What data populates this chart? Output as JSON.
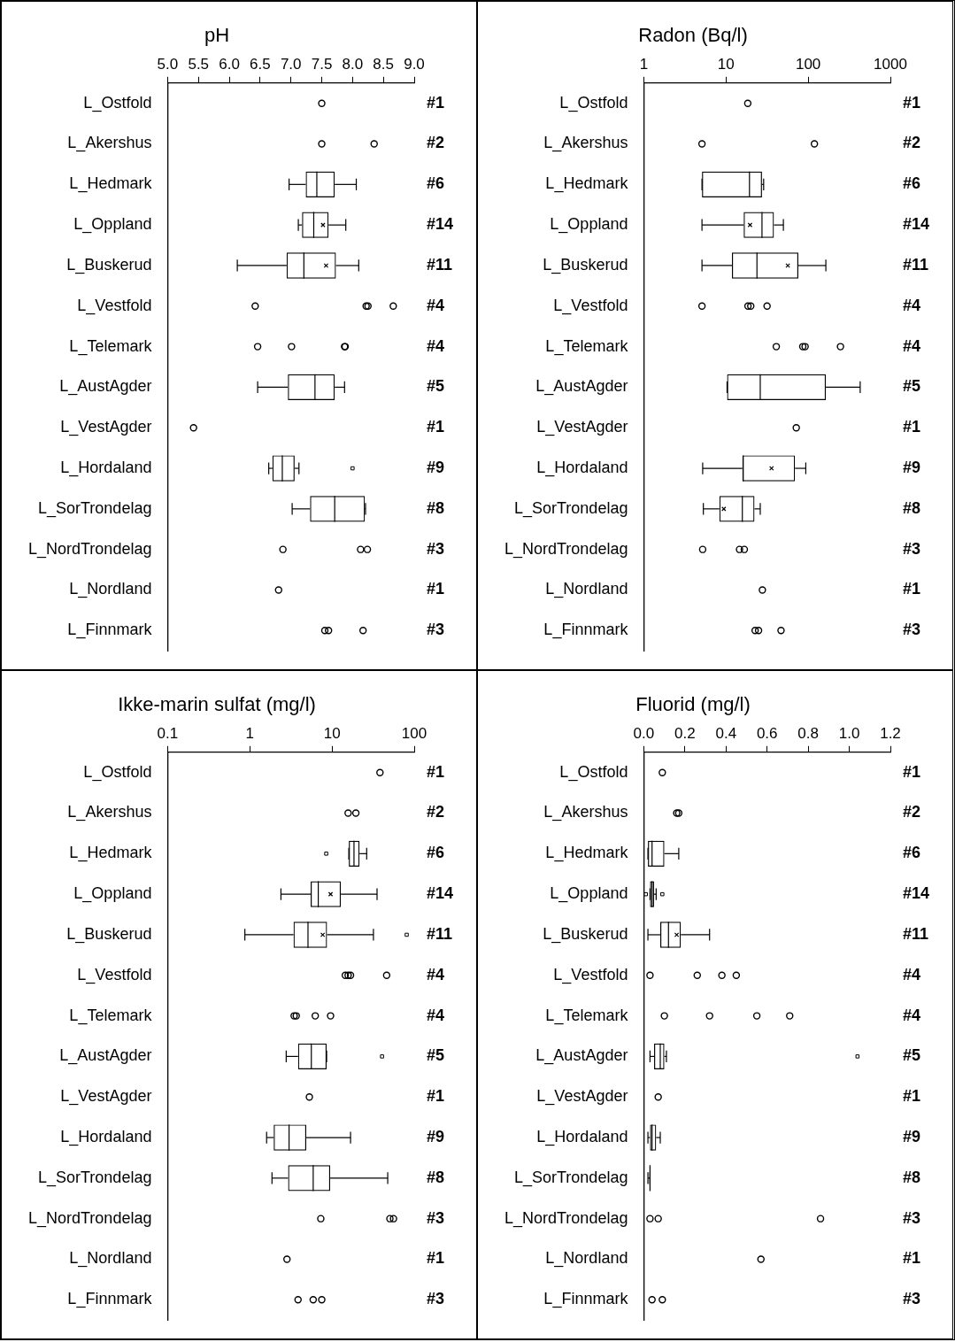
{
  "chart_data": [
    {
      "type": "box",
      "title": "pH",
      "orientation": "horizontal",
      "marker": "circle",
      "categories": [
        "L_Ostfold",
        "L_Akershus",
        "L_Hedmark",
        "L_Oppland",
        "L_Buskerud",
        "L_Vestfold",
        "L_Telemark",
        "L_AustAgder",
        "L_VestAgder",
        "L_Hordaland",
        "L_SorTrondelag",
        "L_NordTrondelag",
        "L_Nordland",
        "L_Finnmark"
      ],
      "xlim": [
        5,
        9
      ],
      "xticks": [
        {
          "value": 5,
          "label": "5.0"
        },
        {
          "value": 5.5,
          "label": "5.5"
        },
        {
          "value": 6,
          "label": "6.0"
        },
        {
          "value": 6.5,
          "label": "6.5"
        },
        {
          "value": 7,
          "label": "7.0"
        },
        {
          "value": 7.5,
          "label": "7.5"
        },
        {
          "value": 8,
          "label": "8.0"
        },
        {
          "value": 8.5,
          "label": "8.5"
        },
        {
          "value": 9,
          "label": "9.0"
        }
      ],
      "boxes": [
        null,
        null,
        {
          "low": 6.97,
          "q1": 7.24,
          "median": 7.42,
          "q3": 7.71,
          "high": 8.06
        },
        {
          "low": 7.12,
          "q1": 7.18,
          "median": 7.37,
          "q3": 7.61,
          "high": 7.89,
          "mean": 7.52
        },
        {
          "low": 6.13,
          "q1": 6.93,
          "median": 7.21,
          "q3": 7.73,
          "high": 8.1,
          "mean": 7.57
        },
        null,
        null,
        {
          "low": 6.46,
          "q1": 6.95,
          "median": 7.39,
          "q3": 7.71,
          "high": 7.87
        },
        null,
        {
          "low": 6.64,
          "q1": 6.7,
          "median": 6.86,
          "q3": 7.06,
          "high": 7.13,
          "outliers": [
            8.0
          ]
        },
        {
          "low": 7.02,
          "q1": 7.31,
          "median": 7.71,
          "q3": 8.2,
          "high": 8.21
        },
        null,
        null,
        null
      ],
      "series": [
        {
          "type": "scatter",
          "x": [
            "L_Ostfold",
            "L_Akershus",
            "L_Akershus",
            "L_Vestfold",
            "L_Vestfold",
            "L_Vestfold",
            "L_Vestfold",
            "L_Telemark",
            "L_Telemark",
            "L_Telemark",
            "L_Telemark",
            "L_VestAgder",
            "L_NordTrondelag",
            "L_NordTrondelag",
            "L_NordTrondelag",
            "L_Nordland",
            "L_Finnmark",
            "L_Finnmark",
            "L_Finnmark"
          ],
          "values": [
            7.5,
            7.5,
            8.35,
            6.42,
            8.22,
            8.25,
            8.66,
            6.46,
            7.01,
            7.87,
            7.88,
            5.42,
            6.87,
            8.13,
            8.24,
            6.8,
            7.55,
            7.61,
            8.17
          ]
        }
      ],
      "annotations": [
        "#1",
        "#2",
        "#6",
        "#14",
        "#11",
        "#4",
        "#4",
        "#5",
        "#1",
        "#9",
        "#8",
        "#3",
        "#1",
        "#3"
      ]
    },
    {
      "type": "box",
      "title": "Radon (Bq/l)",
      "orientation": "horizontal",
      "marker": "circle",
      "log": "x",
      "categories": [
        "L_Ostfold",
        "L_Akershus",
        "L_Hedmark",
        "L_Oppland",
        "L_Buskerud",
        "L_Vestfold",
        "L_Telemark",
        "L_AustAgder",
        "L_VestAgder",
        "L_Hordaland",
        "L_SorTrondelag",
        "L_NordTrondelag",
        "L_Nordland",
        "L_Finnmark"
      ],
      "xlim": [
        1,
        1000
      ],
      "xticks": [
        1,
        10,
        100,
        1000
      ],
      "boxes": [
        null,
        null,
        {
          "low": 5.1,
          "q1": 5.1,
          "median": 19.3,
          "q3": 27.4,
          "high": 28.7
        },
        {
          "low": 5.1,
          "q1": 16.4,
          "median": 27.4,
          "q3": 38.3,
          "high": 49.9,
          "mean": 19.6
        },
        {
          "low": 5.1,
          "q1": 11.8,
          "median": 23.8,
          "q3": 75.9,
          "high": 164,
          "mean": 56.5
        },
        null,
        null,
        {
          "low": 10.3,
          "q1": 10.3,
          "median": 26.1,
          "q3": 164,
          "high": 429
        },
        null,
        {
          "low": 5.2,
          "q1": 15.8,
          "median": 16.2,
          "q3": 69,
          "high": 93.5,
          "mean": 35.8
        },
        {
          "low": 5.3,
          "q1": 8.3,
          "median": 15.8,
          "q3": 22.2,
          "high": 26.1,
          "mean": 9.4
        },
        null,
        null,
        null
      ],
      "series": [
        {
          "type": "scatter",
          "x": [
            "L_Ostfold",
            "L_Akershus",
            "L_Akershus",
            "L_Vestfold",
            "L_Vestfold",
            "L_Vestfold",
            "L_Vestfold",
            "L_Telemark",
            "L_Telemark",
            "L_Telemark",
            "L_Telemark",
            "L_VestAgder",
            "L_NordTrondelag",
            "L_NordTrondelag",
            "L_NordTrondelag",
            "L_Nordland",
            "L_Finnmark",
            "L_Finnmark",
            "L_Finnmark"
          ],
          "values": [
            18.4,
            5.1,
            119,
            5.1,
            18.5,
            20,
            31.6,
            40.9,
            85.9,
            91.7,
            247,
            71.6,
            5.2,
            14.6,
            16.7,
            27.7,
            22.6,
            24.9,
            46.7
          ]
        }
      ],
      "annotations": [
        "#1",
        "#2",
        "#6",
        "#14",
        "#11",
        "#4",
        "#4",
        "#5",
        "#1",
        "#9",
        "#8",
        "#3",
        "#1",
        "#3"
      ]
    },
    {
      "type": "box",
      "title": "Ikke-marin sulfat (mg/l)",
      "orientation": "horizontal",
      "marker": "circle",
      "log": "x",
      "categories": [
        "L_Ostfold",
        "L_Akershus",
        "L_Hedmark",
        "L_Oppland",
        "L_Buskerud",
        "L_Vestfold",
        "L_Telemark",
        "L_AustAgder",
        "L_VestAgder",
        "L_Hordaland",
        "L_SorTrondelag",
        "L_NordTrondelag",
        "L_Nordland",
        "L_Finnmark"
      ],
      "xlim": [
        0.1,
        100
      ],
      "xticks": [
        0.1,
        1,
        10,
        100
      ],
      "boxes": [
        null,
        null,
        {
          "low": 16,
          "q1": 16,
          "median": 18.5,
          "q3": 21.6,
          "high": 26.4,
          "outliers": [
            8.5
          ]
        },
        {
          "low": 2.39,
          "q1": 5.5,
          "median": 6.8,
          "q3": 12.8,
          "high": 35.3,
          "mean": 9.6
        },
        {
          "low": 0.87,
          "q1": 3.4,
          "median": 5.1,
          "q3": 8.7,
          "high": 31.9,
          "mean": 7.7,
          "outliers": [
            81
          ]
        },
        null,
        null,
        {
          "low": 2.77,
          "q1": 3.86,
          "median": 5.6,
          "q3": 8.6,
          "high": 8.6,
          "outliers": [
            40.6
          ]
        },
        null,
        {
          "low": 1.6,
          "q1": 1.95,
          "median": 3,
          "q3": 4.86,
          "high": 16.8
        },
        {
          "low": 1.86,
          "q1": 2.92,
          "median": 5.9,
          "q3": 9.5,
          "high": 47.6
        },
        null,
        null,
        null
      ],
      "series": [
        {
          "type": "scatter",
          "x": [
            "L_Ostfold",
            "L_Akershus",
            "L_Akershus",
            "L_Vestfold",
            "L_Vestfold",
            "L_Vestfold",
            "L_Vestfold",
            "L_Telemark",
            "L_Telemark",
            "L_Telemark",
            "L_Telemark",
            "L_VestAgder",
            "L_NordTrondelag",
            "L_NordTrondelag",
            "L_NordTrondelag",
            "L_Nordland",
            "L_Finnmark",
            "L_Finnmark",
            "L_Finnmark"
          ],
          "values": [
            38.3,
            15.7,
            19.5,
            14.5,
            15.7,
            16.8,
            46.2,
            3.46,
            3.67,
            6.25,
            9.6,
            5.3,
            7.3,
            50.6,
            56,
            2.83,
            3.86,
            5.9,
            7.5
          ]
        }
      ],
      "annotations": [
        "#1",
        "#2",
        "#6",
        "#14",
        "#11",
        "#4",
        "#4",
        "#5",
        "#1",
        "#9",
        "#8",
        "#3",
        "#1",
        "#3"
      ]
    },
    {
      "type": "box",
      "title": "Fluorid (mg/l)",
      "orientation": "horizontal",
      "marker": "circle",
      "categories": [
        "L_Ostfold",
        "L_Akershus",
        "L_Hedmark",
        "L_Oppland",
        "L_Buskerud",
        "L_Vestfold",
        "L_Telemark",
        "L_AustAgder",
        "L_VestAgder",
        "L_Hordaland",
        "L_SorTrondelag",
        "L_NordTrondelag",
        "L_Nordland",
        "L_Finnmark"
      ],
      "xlim": [
        0,
        1.2
      ],
      "xticks": [
        {
          "value": 0,
          "label": "0.0"
        },
        {
          "value": 0.2,
          "label": "0.2"
        },
        {
          "value": 0.4,
          "label": "0.4"
        },
        {
          "value": 0.6,
          "label": "0.6"
        },
        {
          "value": 0.8,
          "label": "0.8"
        },
        {
          "value": 1,
          "label": "1.0"
        },
        {
          "value": 1.2,
          "label": "1.2"
        }
      ],
      "boxes": [
        null,
        null,
        {
          "low": 0.02,
          "q1": 0.02,
          "median": 0.04,
          "q3": 0.1,
          "high": 0.17
        },
        {
          "low": 0.03,
          "q1": 0.03,
          "median": 0.04,
          "q3": 0.05,
          "high": 0.06,
          "outliers": [
            0.01,
            0.09
          ]
        },
        {
          "low": 0.02,
          "q1": 0.08,
          "median": 0.12,
          "q3": 0.18,
          "high": 0.32,
          "mean": 0.16
        },
        null,
        null,
        {
          "low": 0.03,
          "q1": 0.05,
          "median": 0.08,
          "q3": 0.1,
          "high": 0.11,
          "outliers": [
            1.04
          ]
        },
        null,
        {
          "low": 0.02,
          "q1": 0.03,
          "median": 0.04,
          "q3": 0.06,
          "high": 0.08
        },
        {
          "low": 0.02,
          "q1": 0.03,
          "median": 0.03,
          "q3": 0.03,
          "high": 0.03
        },
        null,
        null,
        null
      ],
      "series": [
        {
          "type": "scatter",
          "x": [
            "L_Ostfold",
            "L_Akershus",
            "L_Akershus",
            "L_Vestfold",
            "L_Vestfold",
            "L_Vestfold",
            "L_Vestfold",
            "L_Telemark",
            "L_Telemark",
            "L_Telemark",
            "L_Telemark",
            "L_VestAgder",
            "L_NordTrondelag",
            "L_NordTrondelag",
            "L_NordTrondelag",
            "L_Nordland",
            "L_Finnmark",
            "L_Finnmark"
          ],
          "values": [
            0.09,
            0.16,
            0.17,
            0.03,
            0.26,
            0.38,
            0.45,
            0.1,
            0.32,
            0.55,
            0.71,
            0.07,
            0.03,
            0.07,
            0.86,
            0.57,
            0.04,
            0.09
          ]
        }
      ],
      "annotations": [
        "#1",
        "#2",
        "#6",
        "#14",
        "#11",
        "#4",
        "#4",
        "#5",
        "#1",
        "#9",
        "#8",
        "#3",
        "#1",
        "#3"
      ]
    }
  ]
}
